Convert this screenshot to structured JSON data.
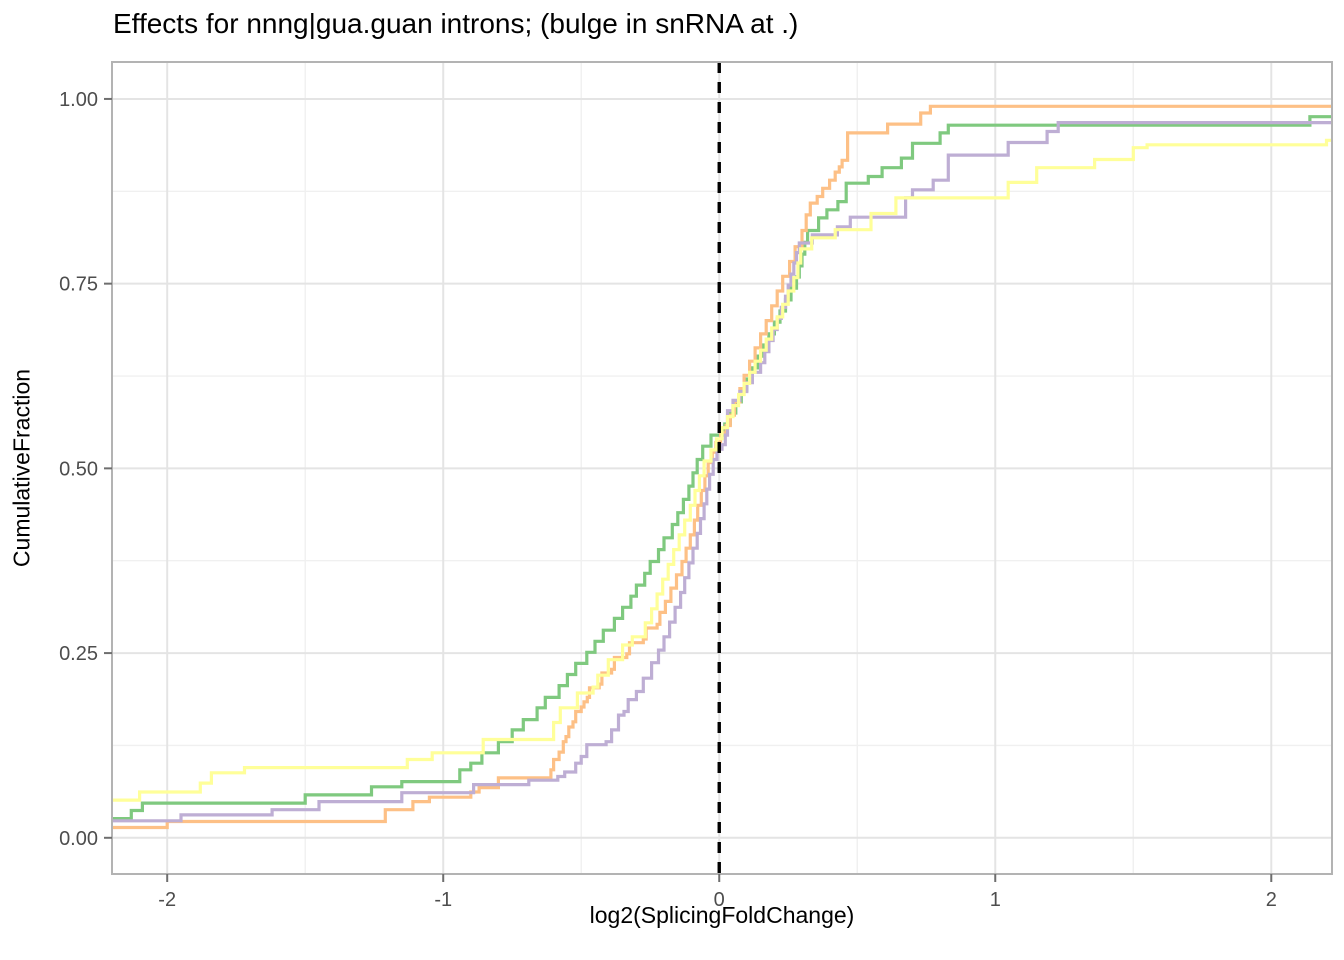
{
  "header": {
    "title": "Effects for nnng|gua.guan introns; (bulge in snRNA at .)"
  },
  "chart_data": {
    "type": "line",
    "subtype": "ecdf-step-curves",
    "title": "Effects for nnng|gua.guan introns; (bulge in snRNA at .)",
    "xlabel": "log2(SplicingFoldChange)",
    "ylabel": "CumulativeFraction",
    "xlim": [
      -2.2,
      2.22
    ],
    "ylim": [
      -0.049,
      1.05
    ],
    "x_major_ticks": [
      -2,
      -1,
      0,
      1,
      2
    ],
    "x_tick_labels": [
      "-2",
      "-1",
      "0",
      "1",
      "2"
    ],
    "x_minor_ticks": [
      -1.5,
      -0.5,
      0.5,
      1.5
    ],
    "y_major_ticks": [
      0,
      0.25,
      0.5,
      0.75,
      1
    ],
    "y_tick_labels": [
      "0.00",
      "0.25",
      "0.50",
      "0.75",
      "1.00"
    ],
    "y_minor_ticks": [
      0.125,
      0.375,
      0.625,
      0.875
    ],
    "grid": "major+minor",
    "legend": "none",
    "panel_border_color": "#b3b3b3",
    "major_grid_color": "#e4e4e4",
    "minor_grid_color": "#f0f0f0",
    "tick_mark_color": "#6e6e6e",
    "tick_label_color": "#4d4d4d",
    "reference_line": {
      "x": 0,
      "style": "dashed",
      "color": "#000000"
    },
    "series": [
      {
        "name": "green-curve",
        "color": "#7FC97F",
        "points": [
          [
            -2.2,
            0.026
          ],
          [
            -2.13,
            0.037
          ],
          [
            -2.09,
            0.047
          ],
          [
            -1.5,
            0.058
          ],
          [
            -1.26,
            0.069
          ],
          [
            -1.15,
            0.076
          ],
          [
            -0.94,
            0.092
          ],
          [
            -0.9,
            0.101
          ],
          [
            -0.86,
            0.115
          ],
          [
            -0.8,
            0.13
          ],
          [
            -0.75,
            0.146
          ],
          [
            -0.71,
            0.16
          ],
          [
            -0.66,
            0.176
          ],
          [
            -0.63,
            0.19
          ],
          [
            -0.58,
            0.206
          ],
          [
            -0.55,
            0.221
          ],
          [
            -0.52,
            0.236
          ],
          [
            -0.48,
            0.251
          ],
          [
            -0.45,
            0.266
          ],
          [
            -0.42,
            0.281
          ],
          [
            -0.38,
            0.297
          ],
          [
            -0.35,
            0.312
          ],
          [
            -0.32,
            0.327
          ],
          [
            -0.3,
            0.342
          ],
          [
            -0.27,
            0.358
          ],
          [
            -0.25,
            0.374
          ],
          [
            -0.22,
            0.39
          ],
          [
            -0.2,
            0.406
          ],
          [
            -0.17,
            0.424
          ],
          [
            -0.15,
            0.44
          ],
          [
            -0.13,
            0.458
          ],
          [
            -0.11,
            0.476
          ],
          [
            -0.095,
            0.494
          ],
          [
            -0.08,
            0.512
          ],
          [
            -0.06,
            0.53
          ],
          [
            -0.03,
            0.545
          ],
          [
            0.02,
            0.56
          ],
          [
            0.04,
            0.575
          ],
          [
            0.06,
            0.59
          ],
          [
            0.08,
            0.606
          ],
          [
            0.1,
            0.621
          ],
          [
            0.12,
            0.636
          ],
          [
            0.14,
            0.652
          ],
          [
            0.16,
            0.667
          ],
          [
            0.18,
            0.682
          ],
          [
            0.2,
            0.698
          ],
          [
            0.22,
            0.713
          ],
          [
            0.24,
            0.728
          ],
          [
            0.26,
            0.744
          ],
          [
            0.28,
            0.759
          ],
          [
            0.29,
            0.774
          ],
          [
            0.3,
            0.79
          ],
          [
            0.31,
            0.806
          ],
          [
            0.32,
            0.822
          ],
          [
            0.36,
            0.839
          ],
          [
            0.39,
            0.85
          ],
          [
            0.43,
            0.861
          ],
          [
            0.46,
            0.886
          ],
          [
            0.54,
            0.895
          ],
          [
            0.59,
            0.907
          ],
          [
            0.66,
            0.92
          ],
          [
            0.7,
            0.94
          ],
          [
            0.8,
            0.954
          ],
          [
            0.83,
            0.9645
          ],
          [
            2.14,
            0.976
          ]
        ]
      },
      {
        "name": "orange-curve",
        "color": "#FDC086",
        "points": [
          [
            -2.2,
            0.014
          ],
          [
            -2.0,
            0.022
          ],
          [
            -1.21,
            0.038
          ],
          [
            -1.11,
            0.049
          ],
          [
            -1.05,
            0.055
          ],
          [
            -0.9,
            0.062
          ],
          [
            -0.87,
            0.068
          ],
          [
            -0.8,
            0.081
          ],
          [
            -0.61,
            0.092
          ],
          [
            -0.6,
            0.106
          ],
          [
            -0.58,
            0.116
          ],
          [
            -0.565,
            0.13
          ],
          [
            -0.555,
            0.137
          ],
          [
            -0.545,
            0.15
          ],
          [
            -0.53,
            0.157
          ],
          [
            -0.52,
            0.171
          ],
          [
            -0.5,
            0.177
          ],
          [
            -0.49,
            0.184
          ],
          [
            -0.478,
            0.19
          ],
          [
            -0.47,
            0.203
          ],
          [
            -0.435,
            0.208
          ],
          [
            -0.425,
            0.223
          ],
          [
            -0.39,
            0.228
          ],
          [
            -0.38,
            0.244
          ],
          [
            -0.335,
            0.249
          ],
          [
            -0.325,
            0.264
          ],
          [
            -0.275,
            0.269
          ],
          [
            -0.265,
            0.284
          ],
          [
            -0.225,
            0.289
          ],
          [
            -0.215,
            0.305
          ],
          [
            -0.195,
            0.32
          ],
          [
            -0.175,
            0.338
          ],
          [
            -0.155,
            0.356
          ],
          [
            -0.135,
            0.374
          ],
          [
            -0.12,
            0.392
          ],
          [
            -0.105,
            0.41
          ],
          [
            -0.09,
            0.43
          ],
          [
            -0.078,
            0.45
          ],
          [
            -0.065,
            0.47
          ],
          [
            -0.052,
            0.49
          ],
          [
            -0.04,
            0.508
          ],
          [
            -0.025,
            0.522
          ],
          [
            -0.012,
            0.535
          ],
          [
            0.005,
            0.548
          ],
          [
            0.025,
            0.558
          ],
          [
            0.04,
            0.572
          ],
          [
            0.055,
            0.59
          ],
          [
            0.075,
            0.608
          ],
          [
            0.09,
            0.626
          ],
          [
            0.11,
            0.645
          ],
          [
            0.13,
            0.663
          ],
          [
            0.15,
            0.682
          ],
          [
            0.17,
            0.7
          ],
          [
            0.19,
            0.72
          ],
          [
            0.21,
            0.74
          ],
          [
            0.23,
            0.76
          ],
          [
            0.255,
            0.78
          ],
          [
            0.275,
            0.8
          ],
          [
            0.3,
            0.822
          ],
          [
            0.315,
            0.843
          ],
          [
            0.33,
            0.859
          ],
          [
            0.355,
            0.868
          ],
          [
            0.375,
            0.879
          ],
          [
            0.4,
            0.89
          ],
          [
            0.42,
            0.901
          ],
          [
            0.435,
            0.908
          ],
          [
            0.445,
            0.917
          ],
          [
            0.465,
            0.954
          ],
          [
            0.61,
            0.966
          ],
          [
            0.73,
            0.981
          ],
          [
            0.765,
            0.99
          ]
        ]
      },
      {
        "name": "purple-curve",
        "color": "#BEAED4",
        "points": [
          [
            -2.2,
            0.023
          ],
          [
            -1.95,
            0.031
          ],
          [
            -1.62,
            0.038
          ],
          [
            -1.45,
            0.049
          ],
          [
            -1.15,
            0.061
          ],
          [
            -0.89,
            0.072
          ],
          [
            -0.69,
            0.078
          ],
          [
            -0.585,
            0.083
          ],
          [
            -0.56,
            0.089
          ],
          [
            -0.52,
            0.101
          ],
          [
            -0.5,
            0.11
          ],
          [
            -0.48,
            0.126
          ],
          [
            -0.41,
            0.13
          ],
          [
            -0.39,
            0.146
          ],
          [
            -0.365,
            0.166
          ],
          [
            -0.345,
            0.171
          ],
          [
            -0.33,
            0.187
          ],
          [
            -0.3,
            0.198
          ],
          [
            -0.275,
            0.216
          ],
          [
            -0.245,
            0.237
          ],
          [
            -0.22,
            0.254
          ],
          [
            -0.2,
            0.272
          ],
          [
            -0.18,
            0.292
          ],
          [
            -0.16,
            0.312
          ],
          [
            -0.14,
            0.332
          ],
          [
            -0.125,
            0.352
          ],
          [
            -0.11,
            0.372
          ],
          [
            -0.095,
            0.392
          ],
          [
            -0.08,
            0.412
          ],
          [
            -0.068,
            0.432
          ],
          [
            -0.055,
            0.452
          ],
          [
            -0.045,
            0.472
          ],
          [
            -0.035,
            0.492
          ],
          [
            -0.022,
            0.512
          ],
          [
            -0.008,
            0.526
          ],
          [
            0.01,
            0.532
          ],
          [
            0.022,
            0.545
          ],
          [
            0.03,
            0.578
          ],
          [
            0.05,
            0.592
          ],
          [
            0.075,
            0.604
          ],
          [
            0.1,
            0.616
          ],
          [
            0.12,
            0.63
          ],
          [
            0.15,
            0.643
          ],
          [
            0.165,
            0.658
          ],
          [
            0.18,
            0.673
          ],
          [
            0.195,
            0.688
          ],
          [
            0.21,
            0.703
          ],
          [
            0.225,
            0.718
          ],
          [
            0.24,
            0.733
          ],
          [
            0.25,
            0.748
          ],
          [
            0.26,
            0.763
          ],
          [
            0.27,
            0.778
          ],
          [
            0.28,
            0.792
          ],
          [
            0.29,
            0.805
          ],
          [
            0.337,
            0.816
          ],
          [
            0.428,
            0.827
          ],
          [
            0.475,
            0.84
          ],
          [
            0.675,
            0.866
          ],
          [
            0.7,
            0.877
          ],
          [
            0.775,
            0.89
          ],
          [
            0.83,
            0.924
          ],
          [
            1.047,
            0.941
          ],
          [
            1.188,
            0.956
          ],
          [
            1.228,
            0.968
          ]
        ]
      },
      {
        "name": "yellow-curve",
        "color": "#FFFF99",
        "points": [
          [
            -2.2,
            0.051
          ],
          [
            -2.1,
            0.062
          ],
          [
            -1.88,
            0.074
          ],
          [
            -1.84,
            0.088
          ],
          [
            -1.72,
            0.095
          ],
          [
            -1.13,
            0.106
          ],
          [
            -1.04,
            0.115
          ],
          [
            -0.855,
            0.133
          ],
          [
            -0.6,
            0.156
          ],
          [
            -0.576,
            0.176
          ],
          [
            -0.514,
            0.196
          ],
          [
            -0.457,
            0.204
          ],
          [
            -0.44,
            0.22
          ],
          [
            -0.402,
            0.241
          ],
          [
            -0.35,
            0.261
          ],
          [
            -0.315,
            0.272
          ],
          [
            -0.268,
            0.291
          ],
          [
            -0.245,
            0.31
          ],
          [
            -0.225,
            0.33
          ],
          [
            -0.205,
            0.35
          ],
          [
            -0.185,
            0.37
          ],
          [
            -0.165,
            0.39
          ],
          [
            -0.145,
            0.41
          ],
          [
            -0.125,
            0.43
          ],
          [
            -0.105,
            0.45
          ],
          [
            -0.088,
            0.47
          ],
          [
            -0.072,
            0.49
          ],
          [
            -0.055,
            0.51
          ],
          [
            -0.03,
            0.525
          ],
          [
            -0.01,
            0.54
          ],
          [
            0.01,
            0.555
          ],
          [
            0.03,
            0.57
          ],
          [
            0.05,
            0.585
          ],
          [
            0.07,
            0.6
          ],
          [
            0.09,
            0.615
          ],
          [
            0.11,
            0.63
          ],
          [
            0.13,
            0.645
          ],
          [
            0.15,
            0.66
          ],
          [
            0.17,
            0.675
          ],
          [
            0.19,
            0.69
          ],
          [
            0.21,
            0.705
          ],
          [
            0.23,
            0.722
          ],
          [
            0.25,
            0.74
          ],
          [
            0.27,
            0.758
          ],
          [
            0.285,
            0.778
          ],
          [
            0.295,
            0.797
          ],
          [
            0.335,
            0.812
          ],
          [
            0.42,
            0.823
          ],
          [
            0.55,
            0.845
          ],
          [
            0.64,
            0.866
          ],
          [
            1.047,
            0.887
          ],
          [
            1.15,
            0.907
          ],
          [
            1.36,
            0.918
          ],
          [
            1.5,
            0.934
          ],
          [
            1.55,
            0.938
          ],
          [
            2.2,
            0.944
          ]
        ]
      }
    ]
  }
}
